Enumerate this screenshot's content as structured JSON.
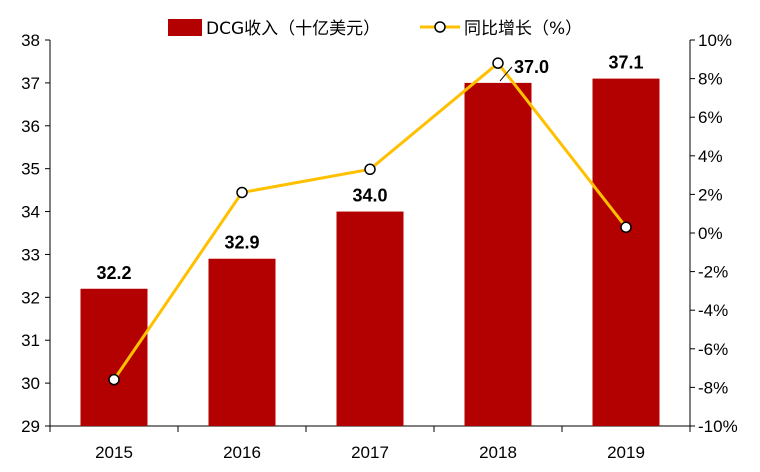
{
  "chart_data": {
    "type": "bar",
    "categories": [
      "2015",
      "2016",
      "2017",
      "2018",
      "2019"
    ],
    "series": [
      {
        "name": "DCG收入（十亿美元）",
        "type": "bar",
        "axis": "left",
        "color": "#B30000",
        "values": [
          32.2,
          32.9,
          34.0,
          37.0,
          37.1
        ],
        "labels": [
          "32.2",
          "32.9",
          "34.0",
          "37.0",
          "37.1"
        ]
      },
      {
        "name": "同比增长（%）",
        "type": "line",
        "axis": "right",
        "color": "#FFC000",
        "values": [
          -7.6,
          2.1,
          3.3,
          8.8,
          0.3
        ]
      }
    ],
    "y_left": {
      "min": 29,
      "max": 38,
      "ticks": [
        "29",
        "30",
        "31",
        "32",
        "33",
        "34",
        "35",
        "36",
        "37",
        "38"
      ]
    },
    "y_right": {
      "min": -10,
      "max": 10,
      "ticks": [
        "-10%",
        "-8%",
        "-6%",
        "-4%",
        "-2%",
        "0%",
        "2%",
        "4%",
        "6%",
        "8%",
        "10%"
      ]
    },
    "grid": false,
    "legend_position": "top"
  }
}
